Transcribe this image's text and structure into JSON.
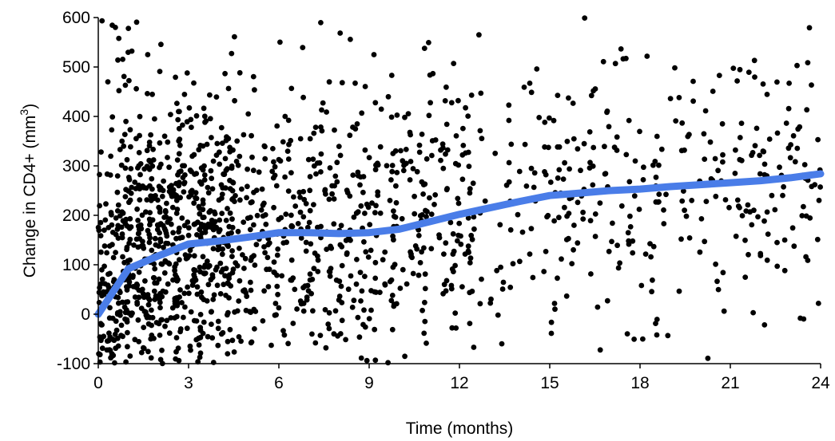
{
  "chart_data": {
    "type": "scatter",
    "title": "",
    "xlabel": "Time (months)",
    "ylabel": {
      "main": "Change in CD4+ (mm",
      "superscript": "3",
      "close": ")"
    },
    "xlim": [
      0,
      24
    ],
    "ylim": [
      -100,
      600
    ],
    "xticks": [
      "0",
      "3",
      "6",
      "9",
      "12",
      "15",
      "18",
      "21",
      "24"
    ],
    "yticks": [
      "-100",
      "0",
      "100",
      "200",
      "300",
      "400",
      "500",
      "600"
    ],
    "grid": false,
    "legend": "none",
    "point_color": "#000000",
    "line_color": "#4a7de8",
    "point_count": 1600,
    "series": [
      {
        "type": "line",
        "x": [
          0,
          1,
          2,
          3,
          4,
          5,
          6,
          7,
          8,
          9,
          10,
          11,
          12,
          13,
          14,
          15,
          16,
          17,
          18,
          19,
          20,
          21,
          22,
          23,
          24
        ],
        "y": [
          0,
          92,
          118,
          142,
          148,
          156,
          165,
          165,
          163,
          165,
          172,
          187,
          202,
          215,
          228,
          240,
          245,
          250,
          253,
          258,
          262,
          266,
          270,
          276,
          284
        ]
      }
    ]
  }
}
